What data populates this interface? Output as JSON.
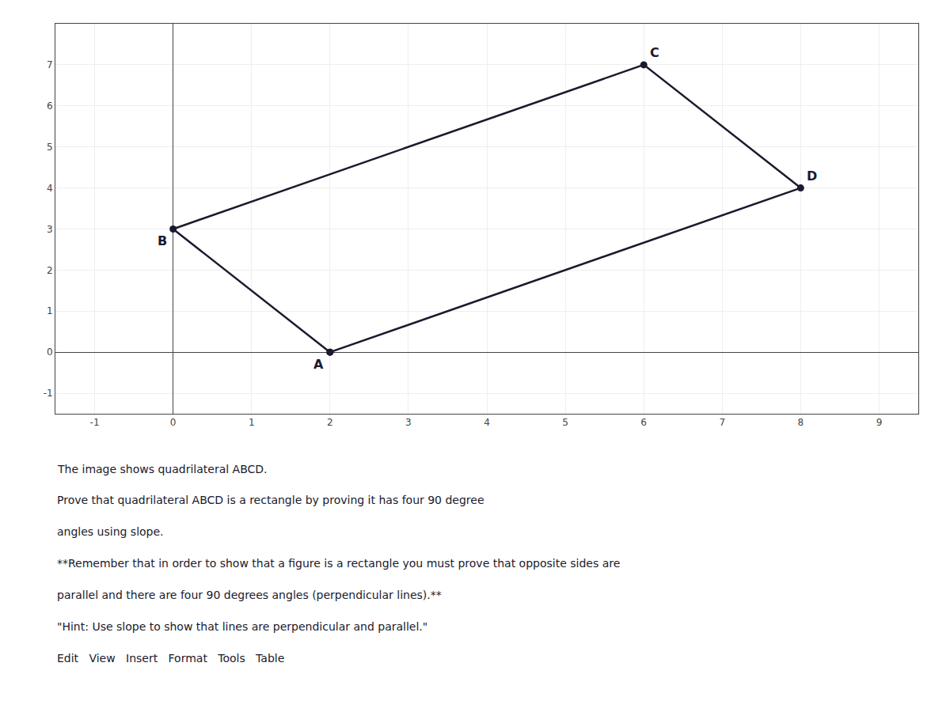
{
  "chart_data": {
    "type": "line",
    "x": [
      2,
      0,
      6,
      8,
      2
    ],
    "values": [
      0,
      3,
      7,
      4,
      0
    ],
    "color": "#1a1a2e",
    "marker": "circle",
    "xlim": [
      -1.5,
      9.5
    ],
    "ylim": [
      -1.5,
      8.0
    ],
    "xticks": [
      -1,
      0,
      1,
      2,
      3,
      4,
      5,
      6,
      7,
      8,
      9
    ],
    "yticks": [
      -1,
      0,
      1,
      2,
      3,
      4,
      5,
      6,
      7
    ],
    "grid": true,
    "annotations": [
      {
        "text": "A",
        "x": 2,
        "y": 0
      },
      {
        "text": "B",
        "x": 0,
        "y": 3
      },
      {
        "text": "C",
        "x": 6,
        "y": 7
      },
      {
        "text": "D",
        "x": 8,
        "y": 4
      },
      {
        "text": "The image shows quadrilateral ABCD."
      },
      {
        "text": "Prove that quadrilateral ABCD is a rectangle by proving it has four 90 degree"
      },
      {
        "text": "angles using slope."
      },
      {
        "text": "**Remember that in order to show that a figure is a rectangle you must prove that opposite sides are"
      },
      {
        "text": "parallel and there are four 90 degrees angles (perpendicular lines).**"
      },
      {
        "text": "\"Hint: Use slope to show that lines are perpendicular and parallel.\""
      },
      {
        "text": "Edit   View   Insert   Format   Tools   Table"
      }
    ]
  }
}
